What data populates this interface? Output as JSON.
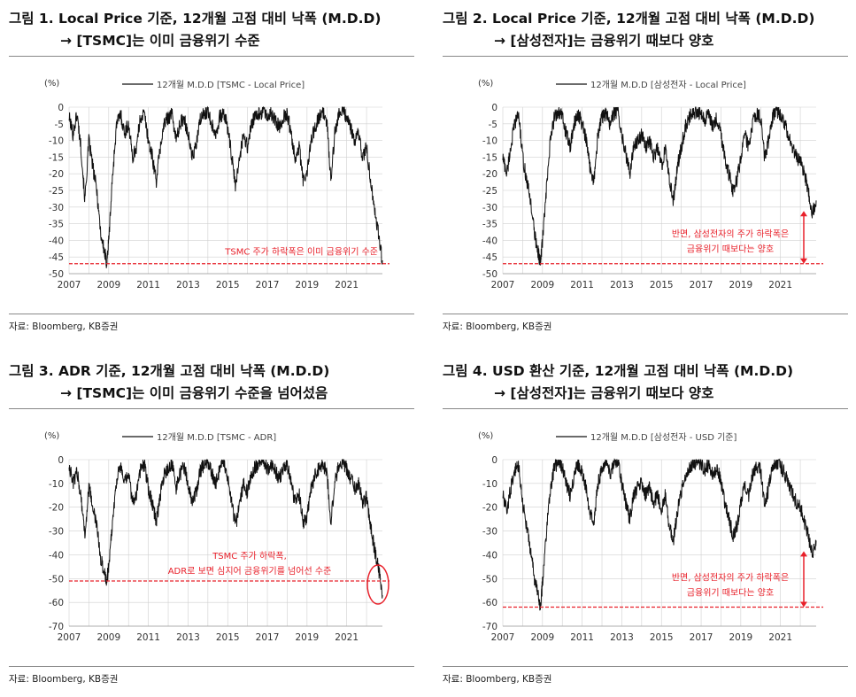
{
  "panels": [
    {
      "title_line1": "그림 1. Local Price 기준, 12개월 고점 대비 낙폭 (M.D.D)",
      "title_line2": "→ [TSMC]는 이미 금융위기 수준",
      "source": "자료: Bloomberg, KB증권"
    },
    {
      "title_line1": "그림 2. Local Price 기준, 12개월 고점 대비 낙폭 (M.D.D)",
      "title_line2": "→ [삼성전자]는 금융위기 때보다 양호",
      "source": "자료: Bloomberg, KB증권"
    },
    {
      "title_line1": "그림 3. ADR 기준, 12개월 고점 대비 낙폭 (M.D.D)",
      "title_line2": "→ [TSMC]는 이미 금융위기 수준을 넘어섰음",
      "source": "자료: Bloomberg, KB증권"
    },
    {
      "title_line1": "그림 4. USD 환산 기준, 12개월 고점 대비 낙폭 (M.D.D)",
      "title_line2": "→ [삼성전자]는 금융위기 때보다 양호",
      "source": "자료: Bloomberg, KB증권"
    }
  ],
  "colors": {
    "line": "#111111",
    "annotation": "#e8202a",
    "grid": "#d0d0d0"
  },
  "chart_data": [
    {
      "type": "line",
      "unit_label": "(%)",
      "legend": "12개월 M.D.D [TSMC - Local Price]",
      "legend_position": "top-center",
      "grid": true,
      "xlim": [
        2007,
        2022.8
      ],
      "ylim": [
        -50,
        0
      ],
      "yticks": [
        0,
        -5,
        -10,
        -15,
        -20,
        -25,
        -30,
        -35,
        -40,
        -45,
        -50
      ],
      "xticks": [
        2007,
        2009,
        2011,
        2013,
        2015,
        2017,
        2019,
        2021
      ],
      "reference_line": -47,
      "annotation": [
        "TSMC 주가 하락폭은 이미 금융위기 수준"
      ],
      "annotation_arrow": false,
      "annotation_circle": false,
      "series": [
        {
          "x": [
            2007.0,
            2007.2,
            2007.4,
            2007.6,
            2007.8,
            2008.0,
            2008.2,
            2008.4,
            2008.6,
            2008.8,
            2008.9,
            2009.0,
            2009.2,
            2009.4,
            2009.6,
            2009.8,
            2010.0,
            2010.2,
            2010.4,
            2010.6,
            2010.8,
            2011.0,
            2011.2,
            2011.4,
            2011.6,
            2011.8,
            2012.0,
            2012.2,
            2012.4,
            2012.6,
            2012.8,
            2013.0,
            2013.2,
            2013.4,
            2013.6,
            2013.8,
            2014.0,
            2014.2,
            2014.4,
            2014.6,
            2014.8,
            2015.0,
            2015.2,
            2015.4,
            2015.6,
            2015.8,
            2016.0,
            2016.2,
            2016.4,
            2016.6,
            2016.8,
            2017.0,
            2017.2,
            2017.4,
            2017.6,
            2017.8,
            2018.0,
            2018.2,
            2018.4,
            2018.6,
            2018.8,
            2019.0,
            2019.2,
            2019.4,
            2019.6,
            2019.8,
            2020.0,
            2020.2,
            2020.4,
            2020.6,
            2020.8,
            2021.0,
            2021.2,
            2021.4,
            2021.6,
            2021.8,
            2022.0,
            2022.2,
            2022.4,
            2022.6,
            2022.8
          ],
          "y": [
            -3,
            -8,
            -2,
            -12,
            -28,
            -10,
            -18,
            -25,
            -38,
            -44,
            -47,
            -40,
            -20,
            -5,
            -2,
            -8,
            -5,
            -15,
            -12,
            -3,
            -2,
            -10,
            -15,
            -22,
            -12,
            -5,
            -3,
            -2,
            -10,
            -5,
            -3,
            -8,
            -15,
            -12,
            -4,
            -2,
            -1,
            -5,
            -8,
            -3,
            -2,
            -6,
            -15,
            -24,
            -15,
            -8,
            -12,
            -5,
            -3,
            -2,
            -1,
            -3,
            -2,
            -4,
            -6,
            -3,
            -2,
            -8,
            -15,
            -12,
            -22,
            -20,
            -10,
            -6,
            -3,
            -2,
            -4,
            -22,
            -8,
            -2,
            -1,
            -3,
            -6,
            -10,
            -8,
            -15,
            -12,
            -22,
            -30,
            -38,
            -46
          ]
        }
      ]
    },
    {
      "type": "line",
      "unit_label": "(%)",
      "legend": "12개월 M.D.D [삼성전자 - Local Price]",
      "legend_position": "top-center",
      "grid": true,
      "xlim": [
        2007,
        2022.8
      ],
      "ylim": [
        -50,
        0
      ],
      "yticks": [
        0,
        -5,
        -10,
        -15,
        -20,
        -25,
        -30,
        -35,
        -40,
        -45,
        -50
      ],
      "xticks": [
        2007,
        2009,
        2011,
        2013,
        2015,
        2017,
        2019,
        2021
      ],
      "reference_line": -47,
      "annotation": [
        "반면, 삼성전자의 주가 하락폭은",
        "금융위기 때보다는 양호"
      ],
      "annotation_arrow": true,
      "annotation_circle": false,
      "series": [
        {
          "x": [
            2007.0,
            2007.2,
            2007.4,
            2007.6,
            2007.8,
            2008.0,
            2008.2,
            2008.4,
            2008.6,
            2008.8,
            2008.9,
            2009.0,
            2009.2,
            2009.4,
            2009.6,
            2009.8,
            2010.0,
            2010.2,
            2010.4,
            2010.6,
            2010.8,
            2011.0,
            2011.2,
            2011.4,
            2011.6,
            2011.8,
            2012.0,
            2012.2,
            2012.4,
            2012.6,
            2012.8,
            2013.0,
            2013.2,
            2013.4,
            2013.6,
            2013.8,
            2014.0,
            2014.2,
            2014.4,
            2014.6,
            2014.8,
            2015.0,
            2015.2,
            2015.4,
            2015.6,
            2015.8,
            2016.0,
            2016.2,
            2016.4,
            2016.6,
            2016.8,
            2017.0,
            2017.2,
            2017.4,
            2017.6,
            2017.8,
            2018.0,
            2018.2,
            2018.4,
            2018.6,
            2018.8,
            2019.0,
            2019.2,
            2019.4,
            2019.6,
            2019.8,
            2020.0,
            2020.2,
            2020.4,
            2020.6,
            2020.8,
            2021.0,
            2021.2,
            2021.4,
            2021.6,
            2021.8,
            2022.0,
            2022.2,
            2022.4,
            2022.6,
            2022.8
          ],
          "y": [
            -15,
            -20,
            -12,
            -5,
            -2,
            -15,
            -22,
            -28,
            -38,
            -44,
            -47,
            -40,
            -25,
            -10,
            -3,
            -1,
            -3,
            -8,
            -12,
            -5,
            -2,
            -5,
            -10,
            -18,
            -22,
            -8,
            -3,
            -2,
            -5,
            -2,
            -1,
            -8,
            -14,
            -20,
            -12,
            -10,
            -8,
            -12,
            -10,
            -15,
            -12,
            -18,
            -12,
            -22,
            -28,
            -18,
            -12,
            -6,
            -3,
            -2,
            -1,
            -2,
            -4,
            -2,
            -6,
            -3,
            -8,
            -15,
            -20,
            -25,
            -22,
            -15,
            -8,
            -12,
            -5,
            -2,
            -3,
            -15,
            -10,
            -3,
            -1,
            -2,
            -5,
            -8,
            -12,
            -15,
            -16,
            -20,
            -25,
            -32,
            -28
          ]
        }
      ]
    },
    {
      "type": "line",
      "unit_label": "(%)",
      "legend": "12개월 M.D.D [TSMC - ADR]",
      "legend_position": "top-center",
      "grid": true,
      "xlim": [
        2007,
        2022.8
      ],
      "ylim": [
        -70,
        0
      ],
      "yticks": [
        0,
        -10,
        -20,
        -30,
        -40,
        -50,
        -60,
        -70
      ],
      "xticks": [
        2007,
        2009,
        2011,
        2013,
        2015,
        2017,
        2019,
        2021
      ],
      "reference_line": -51,
      "annotation": [
        "TSMC 주가 하락폭,",
        "ADR로 보면 심지어 금융위기를 넘어선 수준"
      ],
      "annotation_arrow": false,
      "annotation_circle": true,
      "series": [
        {
          "x": [
            2007.0,
            2007.2,
            2007.4,
            2007.6,
            2007.8,
            2008.0,
            2008.2,
            2008.4,
            2008.6,
            2008.8,
            2008.9,
            2009.0,
            2009.2,
            2009.4,
            2009.6,
            2009.8,
            2010.0,
            2010.2,
            2010.4,
            2010.6,
            2010.8,
            2011.0,
            2011.2,
            2011.4,
            2011.6,
            2011.8,
            2012.0,
            2012.2,
            2012.4,
            2012.6,
            2012.8,
            2013.0,
            2013.2,
            2013.4,
            2013.6,
            2013.8,
            2014.0,
            2014.2,
            2014.4,
            2014.6,
            2014.8,
            2015.0,
            2015.2,
            2015.4,
            2015.6,
            2015.8,
            2016.0,
            2016.2,
            2016.4,
            2016.6,
            2016.8,
            2017.0,
            2017.2,
            2017.4,
            2017.6,
            2017.8,
            2018.0,
            2018.2,
            2018.4,
            2018.6,
            2018.8,
            2019.0,
            2019.2,
            2019.4,
            2019.6,
            2019.8,
            2020.0,
            2020.2,
            2020.4,
            2020.6,
            2020.8,
            2021.0,
            2021.2,
            2021.4,
            2021.6,
            2021.8,
            2022.0,
            2022.2,
            2022.4,
            2022.6,
            2022.8
          ],
          "y": [
            -2,
            -10,
            -5,
            -15,
            -32,
            -12,
            -20,
            -28,
            -42,
            -48,
            -51,
            -45,
            -25,
            -8,
            -3,
            -10,
            -6,
            -18,
            -14,
            -4,
            -2,
            -12,
            -18,
            -26,
            -15,
            -6,
            -4,
            -2,
            -12,
            -6,
            -3,
            -10,
            -18,
            -14,
            -5,
            -2,
            -1,
            -6,
            -10,
            -4,
            -2,
            -8,
            -18,
            -28,
            -18,
            -10,
            -14,
            -6,
            -3,
            -2,
            -1,
            -4,
            -2,
            -5,
            -8,
            -4,
            -2,
            -10,
            -18,
            -14,
            -26,
            -24,
            -12,
            -7,
            -4,
            -2,
            -5,
            -26,
            -10,
            -2,
            -1,
            -4,
            -8,
            -12,
            -10,
            -18,
            -16,
            -28,
            -38,
            -46,
            -57
          ]
        }
      ]
    },
    {
      "type": "line",
      "unit_label": "(%)",
      "legend": "12개월 M.D.D [삼성전자 - USD 기준]",
      "legend_position": "top-center",
      "grid": true,
      "xlim": [
        2007,
        2022.8
      ],
      "ylim": [
        -70,
        0
      ],
      "yticks": [
        0,
        -10,
        -20,
        -30,
        -40,
        -50,
        -60,
        -70
      ],
      "xticks": [
        2007,
        2009,
        2011,
        2013,
        2015,
        2017,
        2019,
        2021
      ],
      "reference_line": -62,
      "annotation": [
        "반면, 삼성전자의 주가 하락폭은",
        "금융위기 때보다는 양호"
      ],
      "annotation_arrow": true,
      "annotation_circle": false,
      "series": [
        {
          "x": [
            2007.0,
            2007.2,
            2007.4,
            2007.6,
            2007.8,
            2008.0,
            2008.2,
            2008.4,
            2008.6,
            2008.8,
            2008.9,
            2009.0,
            2009.2,
            2009.4,
            2009.6,
            2009.8,
            2010.0,
            2010.2,
            2010.4,
            2010.6,
            2010.8,
            2011.0,
            2011.2,
            2011.4,
            2011.6,
            2011.8,
            2012.0,
            2012.2,
            2012.4,
            2012.6,
            2012.8,
            2013.0,
            2013.2,
            2013.4,
            2013.6,
            2013.8,
            2014.0,
            2014.2,
            2014.4,
            2014.6,
            2014.8,
            2015.0,
            2015.2,
            2015.4,
            2015.6,
            2015.8,
            2016.0,
            2016.2,
            2016.4,
            2016.6,
            2016.8,
            2017.0,
            2017.2,
            2017.4,
            2017.6,
            2017.8,
            2018.0,
            2018.2,
            2018.4,
            2018.6,
            2018.8,
            2019.0,
            2019.2,
            2019.4,
            2019.6,
            2019.8,
            2020.0,
            2020.2,
            2020.4,
            2020.6,
            2020.8,
            2021.0,
            2021.2,
            2021.4,
            2021.6,
            2021.8,
            2022.0,
            2022.2,
            2022.4,
            2022.6,
            2022.8
          ],
          "y": [
            -15,
            -22,
            -12,
            -5,
            -2,
            -18,
            -28,
            -38,
            -50,
            -58,
            -62,
            -52,
            -30,
            -12,
            -3,
            -1,
            -3,
            -10,
            -15,
            -6,
            -2,
            -6,
            -12,
            -22,
            -25,
            -10,
            -4,
            -2,
            -6,
            -2,
            -1,
            -10,
            -18,
            -25,
            -15,
            -12,
            -10,
            -15,
            -12,
            -18,
            -15,
            -22,
            -15,
            -28,
            -34,
            -22,
            -14,
            -7,
            -3,
            -2,
            -1,
            -2,
            -4,
            -2,
            -7,
            -3,
            -10,
            -18,
            -25,
            -32,
            -28,
            -18,
            -10,
            -15,
            -6,
            -2,
            -4,
            -20,
            -12,
            -3,
            -1,
            -2,
            -6,
            -10,
            -14,
            -18,
            -20,
            -26,
            -32,
            -40,
            -34
          ]
        }
      ]
    }
  ]
}
